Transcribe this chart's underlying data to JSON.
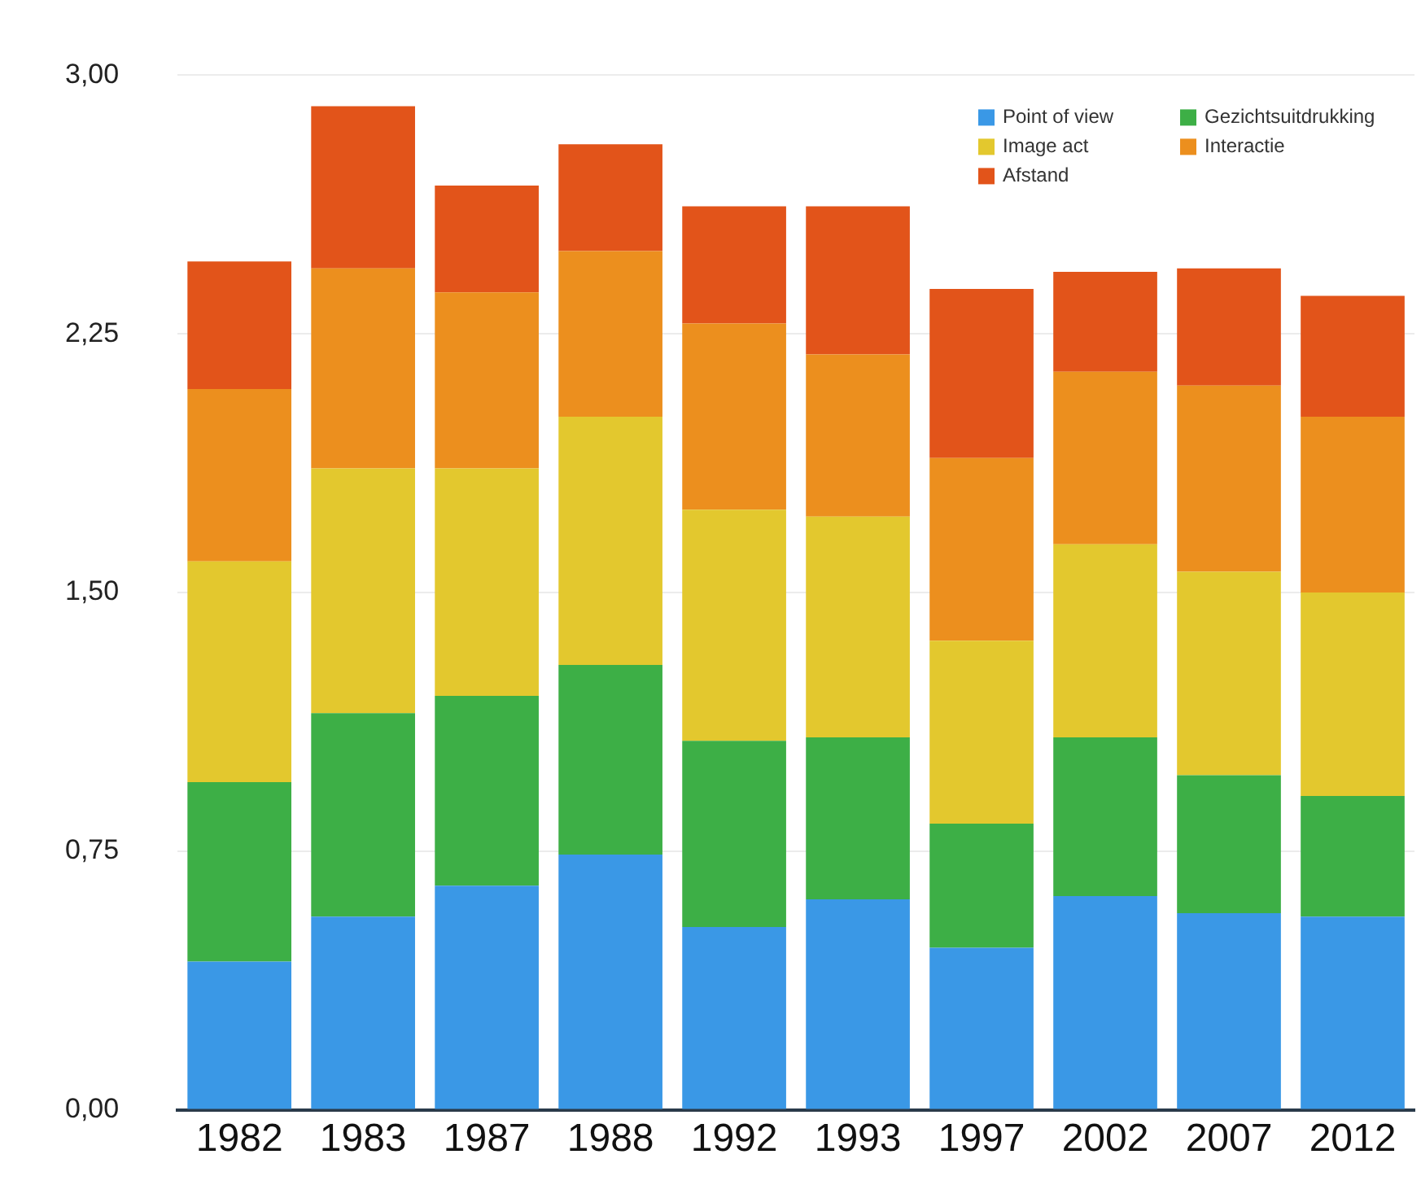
{
  "chart_data": {
    "type": "bar",
    "stacked": true,
    "categories": [
      "1982",
      "1983",
      "1987",
      "1988",
      "1992",
      "1993",
      "1997",
      "2002",
      "2007",
      "2012"
    ],
    "series": [
      {
        "name": "Point of view",
        "color": "#3a98e6",
        "values": [
          0.43,
          0.56,
          0.65,
          0.74,
          0.53,
          0.61,
          0.47,
          0.62,
          0.57,
          0.56
        ]
      },
      {
        "name": "Gezichtsuitdrukking",
        "color": "#3daf46",
        "values": [
          0.52,
          0.59,
          0.55,
          0.55,
          0.54,
          0.47,
          0.36,
          0.46,
          0.4,
          0.35
        ]
      },
      {
        "name": "Image act",
        "color": "#e3c82e",
        "values": [
          0.64,
          0.71,
          0.66,
          0.72,
          0.67,
          0.64,
          0.53,
          0.56,
          0.59,
          0.59
        ]
      },
      {
        "name": "Interactie",
        "color": "#ec8f1e",
        "values": [
          0.5,
          0.58,
          0.51,
          0.48,
          0.54,
          0.47,
          0.53,
          0.5,
          0.54,
          0.51
        ]
      },
      {
        "name": "Afstand",
        "color": "#e2541a",
        "values": [
          0.37,
          0.47,
          0.31,
          0.31,
          0.34,
          0.43,
          0.49,
          0.29,
          0.34,
          0.35
        ]
      }
    ],
    "ylim": [
      0,
      3
    ],
    "yticks": [
      {
        "value": 0,
        "label": "0,00"
      },
      {
        "value": 0.75,
        "label": "0,75"
      },
      {
        "value": 1.5,
        "label": "1,50"
      },
      {
        "value": 2.25,
        "label": "2,25"
      },
      {
        "value": 3,
        "label": "3,00"
      }
    ],
    "grid": "y",
    "legend": "top right"
  }
}
